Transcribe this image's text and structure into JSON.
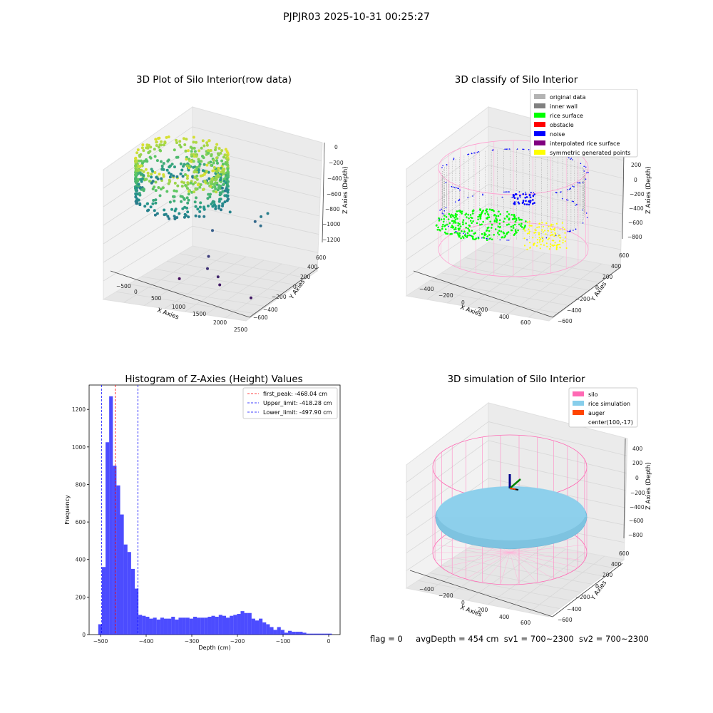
{
  "suptitle": "PJPJR03 2025-10-31 00:25:27",
  "chart_data": [
    {
      "type": "scatter",
      "projection": "3d",
      "title": "3D Plot of Silo Interior(row data)",
      "xlabel": "X Axies",
      "ylabel": "Y Axies",
      "zlabel": "Z Axies (Depth)",
      "x_ticks": [
        "−500",
        "0",
        "500",
        "1000",
        "1500",
        "2000",
        "2500"
      ],
      "y_ticks": [
        "−600",
        "−400",
        "−200",
        "0",
        "200",
        "400",
        "600"
      ],
      "z_ticks": [
        "0",
        "−200",
        "−400",
        "−600",
        "−800",
        "−1000",
        "−1200"
      ],
      "xlim": [
        -700,
        2600
      ],
      "ylim": [
        -700,
        700
      ],
      "zlim": [
        -1300,
        50
      ],
      "colormap": "viridis",
      "description_points": {
        "ring": {
          "center": [
            0,
            0
          ],
          "radius": 600,
          "z_top": -250,
          "z_bottom": -600
        },
        "outliers": [
          {
            "x": 1700,
            "y": 300,
            "z": -750
          },
          {
            "x": 1800,
            "y": 350,
            "z": -720
          },
          {
            "x": 1750,
            "y": 250,
            "z": -820
          },
          {
            "x": 1500,
            "y": 350,
            "z": -850
          },
          {
            "x": 1200,
            "y": 100,
            "z": -700
          },
          {
            "x": 900,
            "y": 0,
            "z": -900
          },
          {
            "x": 1100,
            "y": -250,
            "z": -1050
          },
          {
            "x": 1250,
            "y": -400,
            "z": -1100
          },
          {
            "x": 1500,
            "y": -400,
            "z": -1150
          },
          {
            "x": 1600,
            "y": -450,
            "z": -1200
          },
          {
            "x": 2400,
            "y": -500,
            "z": -1200
          },
          {
            "x": 700,
            "y": -500,
            "z": -1250
          }
        ]
      }
    },
    {
      "type": "scatter",
      "projection": "3d",
      "title": "3D classify of Silo Interior",
      "xlabel": "X Axies",
      "ylabel": "Y Axies",
      "zlabel": "Z Axies (Depth)",
      "x_ticks": [
        "−400",
        "−200",
        "0",
        "200",
        "400",
        "600"
      ],
      "y_ticks": [
        "−600",
        "−400",
        "−200",
        "0",
        "200",
        "400",
        "600"
      ],
      "z_ticks": [
        "200",
        "0",
        "−200",
        "−400",
        "−600",
        "−800"
      ],
      "zlim": [
        -900,
        300
      ],
      "legend": {
        "placement": "upper right",
        "entries": [
          {
            "label": "original data",
            "color": "#b3b3b3"
          },
          {
            "label": "inner wall",
            "color": "#808080"
          },
          {
            "label": "rice surface",
            "color": "#00ff00"
          },
          {
            "label": "obstacle",
            "color": "#ff0000"
          },
          {
            "label": "noise",
            "color": "#0000ff"
          },
          {
            "label": "interpolated rice surface",
            "color": "#800080"
          },
          {
            "label": "symmetric generated points",
            "color": "#ffff00"
          }
        ]
      },
      "extra_tick_top": "00"
    },
    {
      "type": "bar",
      "title": "Histogram of Z-Axies (Height) Values",
      "xlabel": "Depth (cm)",
      "ylabel": "Frequency",
      "xlim": [
        -525,
        25
      ],
      "ylim": [
        0,
        1330
      ],
      "x_ticks": [
        -500,
        -400,
        -300,
        -200,
        -100,
        0
      ],
      "x_tick_labels": [
        "−500",
        "−400",
        "−300",
        "−200",
        "−100",
        "0"
      ],
      "y_ticks": [
        0,
        200,
        400,
        600,
        800,
        1000,
        1200
      ],
      "bar_color": "#0000ff",
      "bar_alpha": 0.7,
      "bin_width": 8,
      "bins_start": [
        -505,
        -497,
        -489,
        -481,
        -473,
        -465,
        -457,
        -449,
        -441,
        -433,
        -425,
        -417,
        -409,
        -401,
        -393,
        -385,
        -377,
        -369,
        -361,
        -353,
        -345,
        -337,
        -329,
        -321,
        -313,
        -305,
        -297,
        -289,
        -281,
        -273,
        -265,
        -257,
        -249,
        -241,
        -233,
        -225,
        -217,
        -209,
        -201,
        -193,
        -185,
        -177,
        -169,
        -161,
        -153,
        -145,
        -137,
        -129,
        -121,
        -113,
        -105,
        -97,
        -89,
        -81,
        -73,
        -65,
        -57,
        -49,
        -41,
        -33,
        -25,
        -17,
        -9,
        -1
      ],
      "values": [
        55,
        360,
        1025,
        1270,
        900,
        795,
        640,
        480,
        440,
        350,
        245,
        105,
        100,
        95,
        85,
        90,
        80,
        90,
        85,
        85,
        95,
        80,
        90,
        90,
        90,
        85,
        95,
        90,
        90,
        90,
        95,
        100,
        95,
        105,
        100,
        90,
        100,
        105,
        110,
        125,
        115,
        115,
        85,
        75,
        85,
        65,
        55,
        40,
        25,
        40,
        25,
        10,
        20,
        15,
        15,
        15,
        10,
        5,
        5,
        5,
        5,
        5,
        5,
        5
      ],
      "vlines": [
        {
          "label": "first_peak: -468.04 cm",
          "x": -468.04,
          "color": "#ff0000"
        },
        {
          "label": "Upper_limit: -418.28 cm",
          "x": -418.28,
          "color": "#0000ff"
        },
        {
          "label": "Lower_limit: -497.90 cm",
          "x": -497.9,
          "color": "#0000ff"
        }
      ],
      "legend_placement": "upper right"
    },
    {
      "type": "surface",
      "projection": "3d",
      "title": "3D simulation of Silo Interior",
      "xlabel": "X Axies",
      "ylabel": "Y Axies",
      "zlabel": "Z Axies (Depth)",
      "x_ticks": [
        "−400",
        "−200",
        "0",
        "200",
        "400",
        "600"
      ],
      "y_ticks": [
        "−600",
        "−400",
        "−200",
        "0",
        "200",
        "400",
        "600"
      ],
      "z_ticks": [
        "400",
        "200",
        "0",
        "−200",
        "−400",
        "−600",
        "−800"
      ],
      "legend": {
        "placement": "upper right",
        "entries": [
          {
            "label": "silo",
            "color": "#ff69b4"
          },
          {
            "label": "rice simulation",
            "color": "#87ceeb"
          },
          {
            "label": "auger",
            "color": "#ff4500"
          },
          {
            "label": "center(100,-17)",
            "color": null
          }
        ]
      }
    }
  ],
  "status": {
    "flag": "flag = 0",
    "avg_depth": "avgDepth = 454 cm",
    "sv1": "sv1 = 700~2300",
    "sv2": "sv2 = 700~2300"
  }
}
